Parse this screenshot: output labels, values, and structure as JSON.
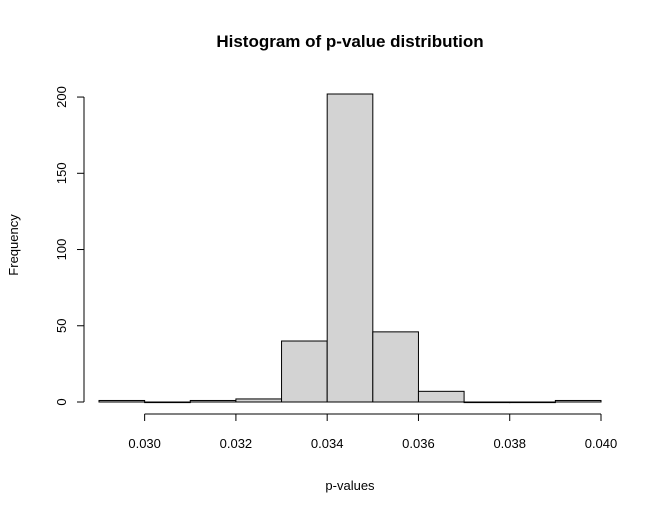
{
  "chart_data": {
    "type": "bar",
    "title": "Histogram of p-value distribution",
    "xlabel": "p-values",
    "ylabel": "Frequency",
    "bin_edges": [
      0.029,
      0.03,
      0.031,
      0.032,
      0.033,
      0.034,
      0.035,
      0.036,
      0.037,
      0.038,
      0.039,
      0.04
    ],
    "values": [
      1,
      0,
      1,
      2,
      40,
      202,
      46,
      7,
      0,
      0,
      1
    ],
    "xlim": [
      0.029,
      0.04
    ],
    "ylim": [
      0,
      202
    ],
    "x_ticks": [
      0.03,
      0.032,
      0.034,
      0.036,
      0.038,
      0.04
    ],
    "x_tick_labels": [
      "0.030",
      "0.032",
      "0.034",
      "0.036",
      "0.038",
      "0.040"
    ],
    "y_ticks": [
      0,
      50,
      100,
      150,
      200
    ],
    "y_tick_labels": [
      "0",
      "50",
      "100",
      "150",
      "200"
    ],
    "grid": false,
    "bar_color": "#d3d3d3",
    "edge_color": "#000000"
  }
}
